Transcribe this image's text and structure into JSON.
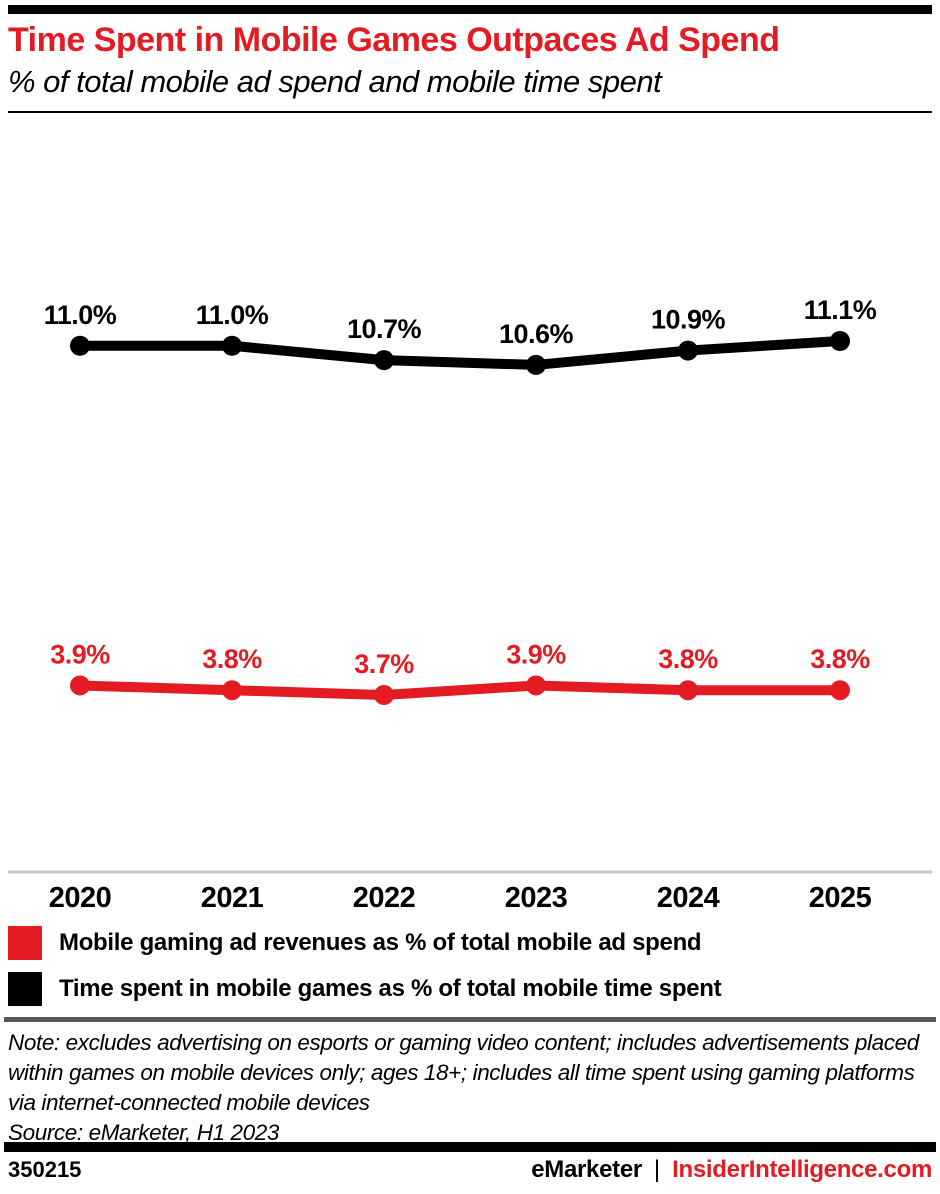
{
  "theme": {
    "accent_red": "#e31b23",
    "black": "#000000",
    "axis_gray": "#c9c9c9",
    "divider_gray": "#58585a"
  },
  "header": {
    "title": "Time Spent in Mobile Games Outpaces Ad Spend",
    "subtitle": "% of total mobile ad spend and mobile time spent"
  },
  "chart_data": {
    "type": "line",
    "title": "Time Spent in Mobile Games Outpaces Ad Spend",
    "subtitle": "% of total mobile ad spend and mobile time spent",
    "categories": [
      "2020",
      "2021",
      "2022",
      "2023",
      "2024",
      "2025"
    ],
    "series": [
      {
        "name": "Time spent in mobile games as % of total mobile time spent",
        "color": "#000000",
        "values": [
          11.0,
          11.0,
          10.7,
          10.6,
          10.9,
          11.1
        ],
        "labels": [
          "11.0%",
          "11.0%",
          "10.7%",
          "10.6%",
          "10.9%",
          "11.1%"
        ]
      },
      {
        "name": "Mobile gaming ad revenues as % of total mobile ad spend",
        "color": "#e31b23",
        "values": [
          3.9,
          3.8,
          3.7,
          3.9,
          3.8,
          3.8
        ],
        "labels": [
          "3.9%",
          "3.8%",
          "3.7%",
          "3.9%",
          "3.8%",
          "3.8%"
        ]
      }
    ],
    "xlabel": "",
    "ylabel": "",
    "ylim": [
      0,
      12
    ],
    "grid": false,
    "y_axis_shown": false,
    "data_labels_shown": true,
    "legend_position": "bottom-left",
    "axis_color": "#c9c9c9"
  },
  "legend": {
    "items": [
      {
        "label": "Mobile gaming ad revenues as % of total mobile ad spend",
        "color": "#e31b23"
      },
      {
        "label": "Time spent in mobile games as % of total mobile time spent",
        "color": "#000000"
      }
    ]
  },
  "note": {
    "text": "Note: excludes advertising on esports or gaming video content; includes advertisements placed within games on mobile devices only; ages 18+; includes all time spent using gaming platforms via internet-connected mobile devices",
    "source": "Source: eMarketer, H1 2023"
  },
  "footer": {
    "chart_id": "350215",
    "brand": "eMarketer",
    "separator": "|",
    "site": "InsiderIntelligence.com"
  }
}
